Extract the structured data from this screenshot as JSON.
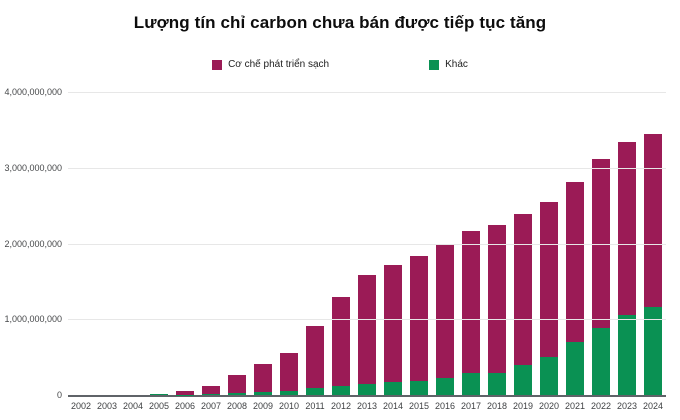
{
  "chart_data": {
    "type": "bar",
    "stacked": true,
    "title": "Lượng tín chỉ carbon chưa bán được tiếp tục tăng",
    "categories": [
      "2002",
      "2003",
      "2004",
      "2005",
      "2006",
      "2007",
      "2008",
      "2009",
      "2010",
      "2011",
      "2012",
      "2013",
      "2014",
      "2015",
      "2016",
      "2017",
      "2018",
      "2019",
      "2020",
      "2021",
      "2022",
      "2023",
      "2024"
    ],
    "series": [
      {
        "name": "Cơ chế phát triển sạch",
        "slug": "cdm",
        "color": "#9b1b56",
        "values": [
          0,
          0,
          0,
          0,
          45000000,
          105000000,
          235000000,
          370000000,
          505000000,
          815000000,
          1175000000,
          1430000000,
          1545000000,
          1650000000,
          1775000000,
          1875000000,
          1955000000,
          1995000000,
          2050000000,
          2110000000,
          2225000000,
          2290000000,
          2290000000
        ]
      },
      {
        "name": "Khác",
        "slug": "khac",
        "color": "#0a9153",
        "values": [
          0,
          0,
          0,
          10000000,
          5000000,
          10000000,
          25000000,
          45000000,
          55000000,
          90000000,
          125000000,
          150000000,
          170000000,
          185000000,
          225000000,
          290000000,
          295000000,
          395000000,
          500000000,
          700000000,
          885000000,
          1050000000,
          1160000000
        ]
      }
    ],
    "xlabel": "",
    "ylabel": "",
    "ylim": [
      0,
      4000000000
    ],
    "ytick_values": [
      0,
      1000000000,
      2000000000,
      3000000000,
      4000000000
    ],
    "ytick_labels": [
      "0",
      "1,000,000,000",
      "2,000,000,000",
      "3,000,000,000",
      "4,000,000,000"
    ],
    "grid": "horizontal",
    "legend_position": "top-center",
    "colors": {
      "gridline": "#e7e7e7",
      "axis_line": "#5f6368",
      "tick_text": "#46484a"
    }
  }
}
